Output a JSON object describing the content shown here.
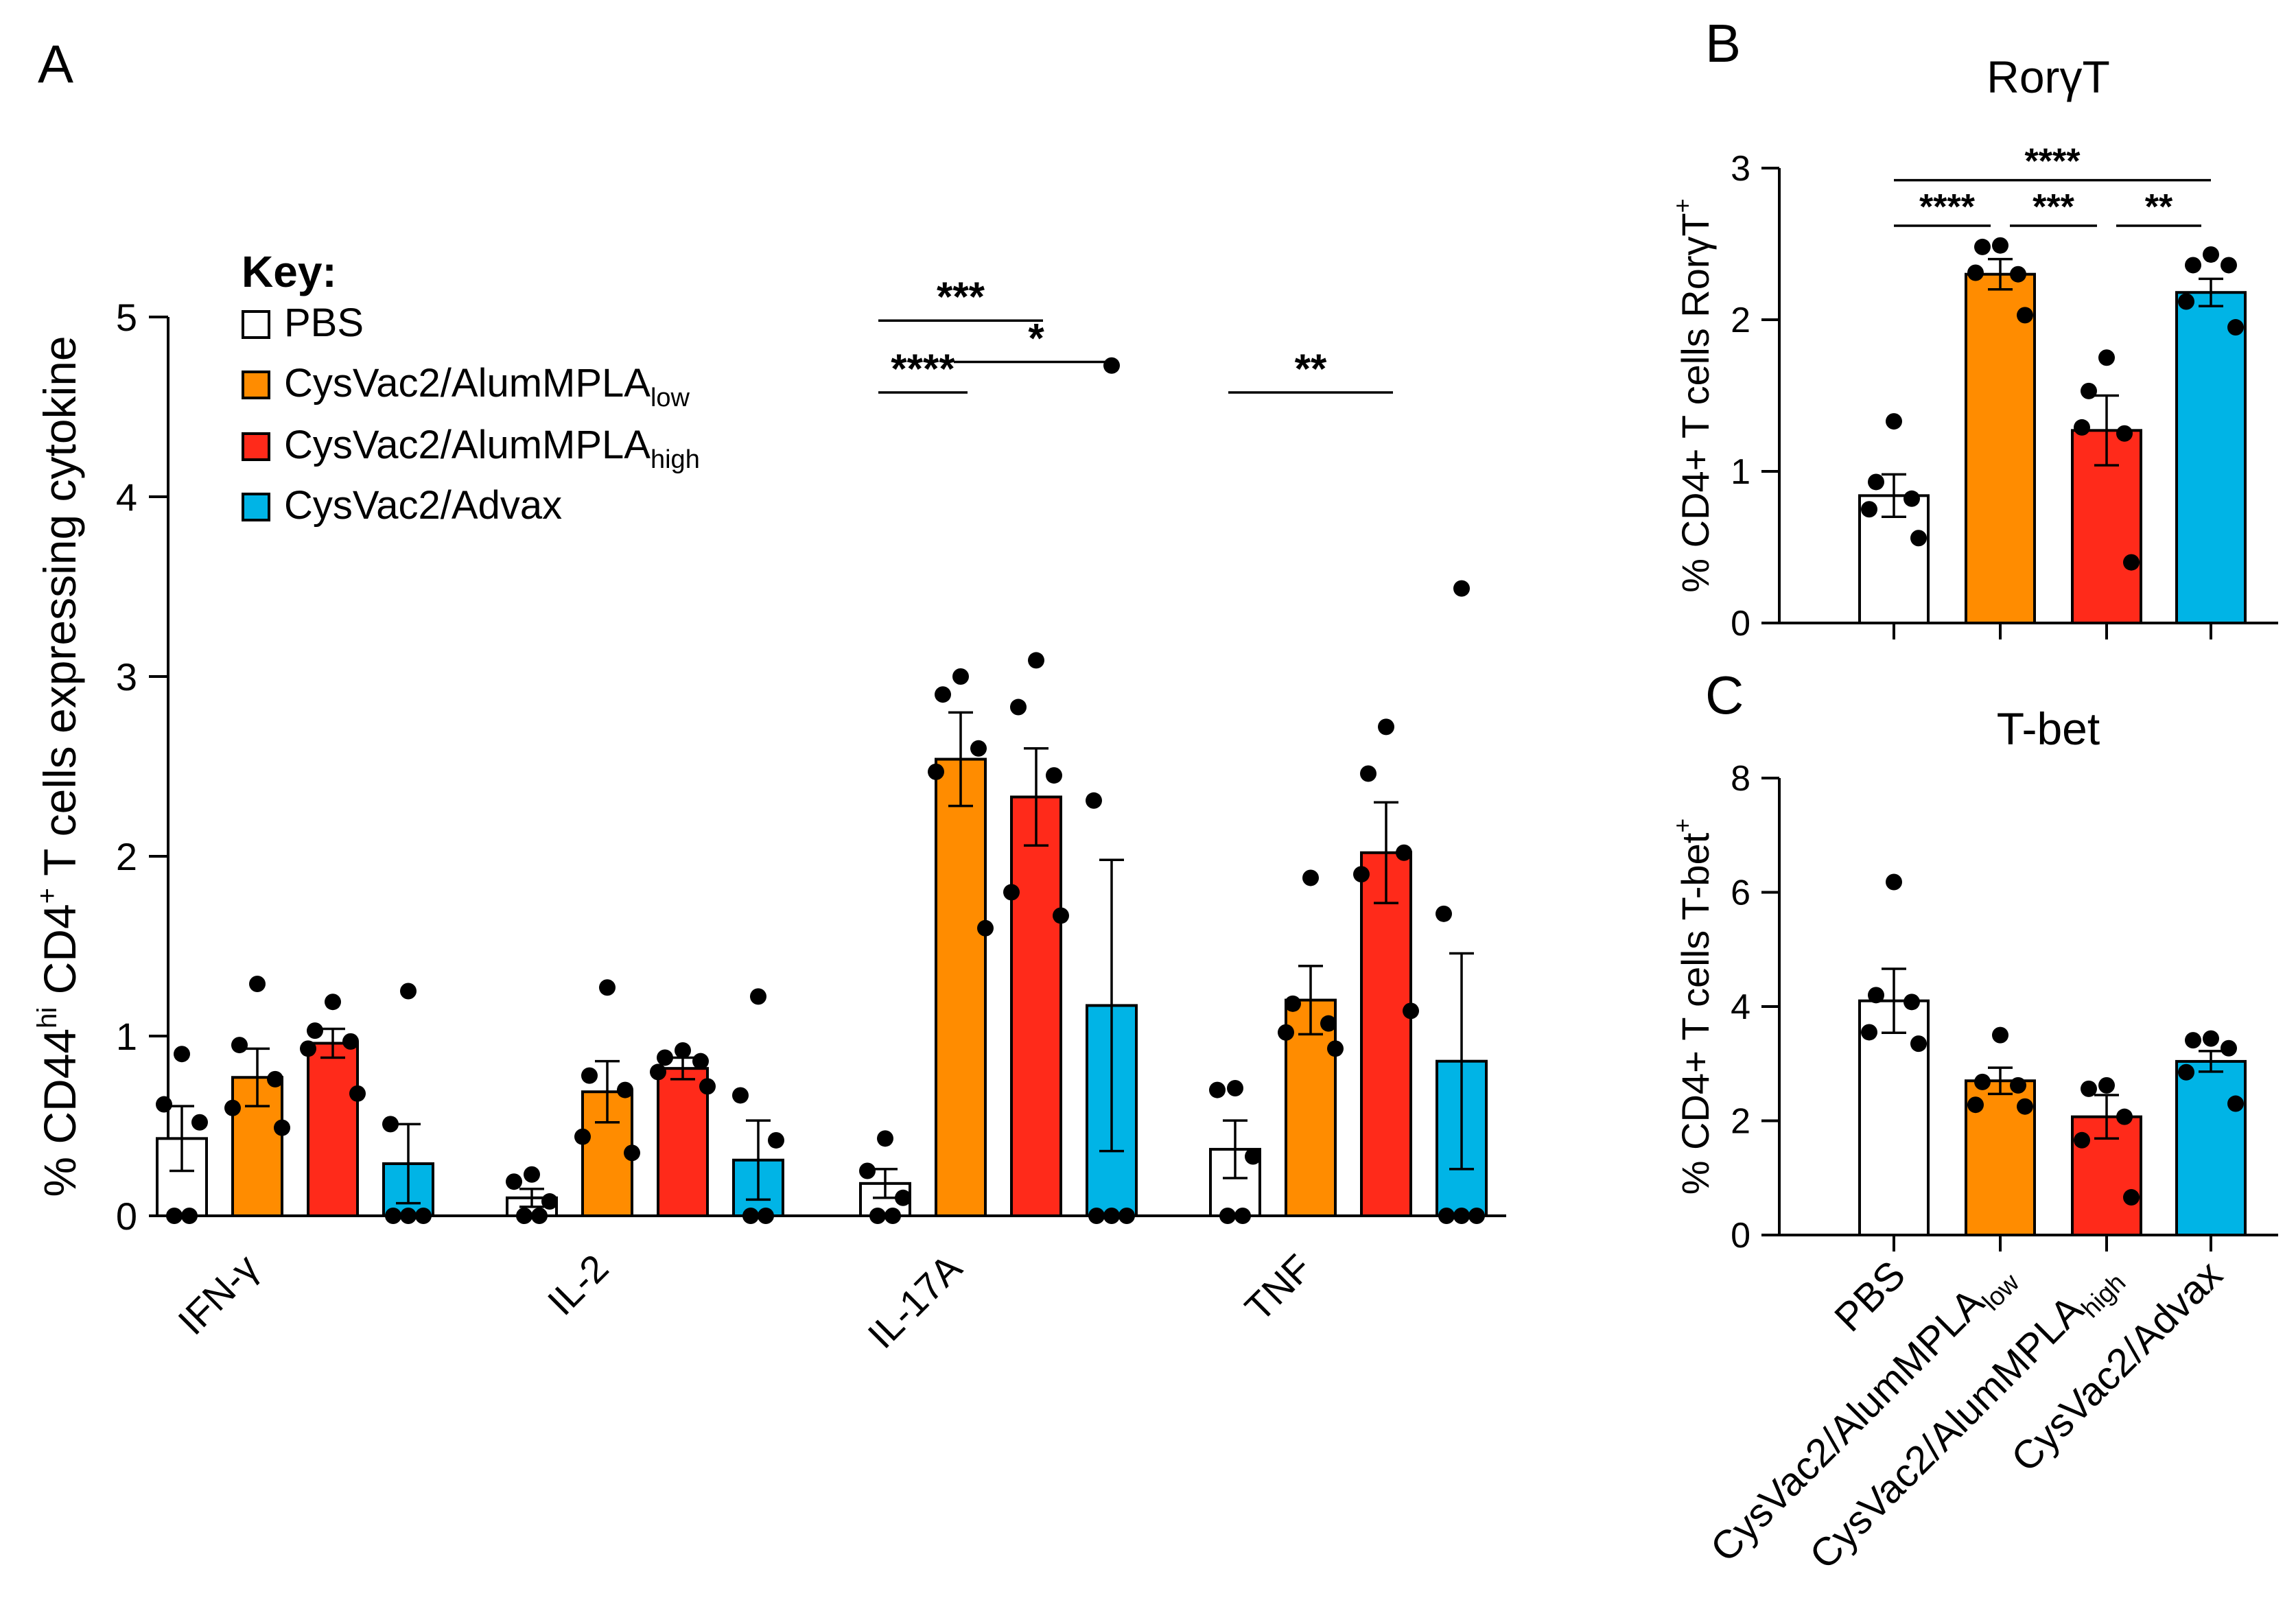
{
  "groups": [
    {
      "name": "PBS",
      "sub": "",
      "color": "#ffffff"
    },
    {
      "name": "CysVac2/AlumMPLA",
      "sub": "low",
      "color": "#ff8c00"
    },
    {
      "name": "CysVac2/AlumMPLA",
      "sub": "high",
      "color": "#ff2a1a"
    },
    {
      "name": "CysVac2/Advax",
      "sub": "",
      "color": "#00b4e6"
    }
  ],
  "key_title": "Key:",
  "chart_data": [
    {
      "panel": "A",
      "type": "bar",
      "title": "",
      "ylabel_parts": [
        "% CD44",
        "hi",
        " CD4",
        "+",
        " T cells expressing cytokine"
      ],
      "ylim": [
        0,
        5
      ],
      "yticks": [
        0,
        1,
        2,
        3,
        4,
        5
      ],
      "categories": [
        "IFN-γ",
        "IL-2",
        "IL-17A",
        "TNF"
      ],
      "series": [
        {
          "name": "PBS",
          "values": [
            0.43,
            0.1,
            0.18,
            0.37
          ],
          "sem": [
            0.18,
            0.05,
            0.08,
            0.16
          ],
          "points": [
            [
              0.9,
              0.62,
              0.52,
              0,
              0
            ],
            [
              0.23,
              0.19,
              0.08,
              0,
              0
            ],
            [
              0.43,
              0.25,
              0.1,
              0,
              0
            ],
            [
              0.71,
              0.7,
              0.33,
              0,
              0
            ]
          ]
        },
        {
          "name": "CysVac2/AlumMPLA low",
          "values": [
            0.77,
            0.69,
            2.54,
            1.2
          ],
          "sem": [
            0.16,
            0.17,
            0.26,
            0.19
          ],
          "points": [
            [
              1.29,
              0.95,
              0.76,
              0.6,
              0.49
            ],
            [
              1.27,
              0.78,
              0.7,
              0.44,
              0.35
            ],
            [
              3.0,
              2.9,
              2.6,
              2.47,
              1.6
            ],
            [
              1.88,
              1.18,
              1.07,
              1.02,
              0.93
            ]
          ]
        },
        {
          "name": "CysVac2/AlumMPLA high",
          "values": [
            0.96,
            0.82,
            2.33,
            2.02
          ],
          "sem": [
            0.08,
            0.06,
            0.27,
            0.28
          ],
          "points": [
            [
              1.19,
              1.03,
              0.97,
              0.93,
              0.68
            ],
            [
              0.92,
              0.88,
              0.86,
              0.8,
              0.72
            ],
            [
              3.09,
              2.83,
              2.45,
              1.8,
              1.67
            ],
            [
              2.72,
              2.46,
              2.02,
              1.9,
              1.14
            ]
          ]
        },
        {
          "name": "CysVac2/Advax",
          "values": [
            0.29,
            0.31,
            1.17,
            0.86
          ],
          "sem": [
            0.22,
            0.22,
            0.81,
            0.6
          ],
          "points": [
            [
              1.25,
              0.51,
              0,
              0,
              0
            ],
            [
              1.22,
              0.67,
              0.42,
              0,
              0
            ],
            [
              4.73,
              2.31,
              0,
              0,
              0
            ],
            [
              3.49,
              1.68,
              0,
              0,
              0
            ]
          ]
        }
      ],
      "significance": [
        {
          "label": "***",
          "category": 2,
          "from": 0,
          "to": 2,
          "y": 4.98
        },
        {
          "label": "*",
          "category": 2,
          "from": 1,
          "to": 3,
          "y": 4.75
        },
        {
          "label": "****",
          "category": 2,
          "from": 0,
          "to": 1,
          "y": 4.58
        },
        {
          "label": "**",
          "category": 3,
          "from": 0,
          "to": 2,
          "y": 4.58
        }
      ]
    },
    {
      "panel": "B",
      "type": "bar",
      "title": "RorγT",
      "ylabel_parts": [
        "% CD4+ T cells RorγT",
        "+"
      ],
      "ylim": [
        0,
        3
      ],
      "yticks": [
        0,
        1,
        2,
        3
      ],
      "values": [
        0.84,
        2.3,
        1.27,
        2.18
      ],
      "sem": [
        0.14,
        0.1,
        0.23,
        0.09
      ],
      "points": [
        [
          1.33,
          0.93,
          0.82,
          0.75,
          0.56
        ],
        [
          2.49,
          2.48,
          2.3,
          2.31,
          2.03
        ],
        [
          1.75,
          1.53,
          1.25,
          1.29,
          0.4
        ],
        [
          2.43,
          2.36,
          2.36,
          2.12,
          1.95
        ]
      ],
      "significance": [
        {
          "label": "****",
          "from": 0,
          "to": 3,
          "y": 2.92
        },
        {
          "label": "****",
          "from": 0,
          "to": 1,
          "y": 2.62
        },
        {
          "label": "***",
          "from": 1,
          "to": 2,
          "y": 2.62
        },
        {
          "label": "**",
          "from": 2,
          "to": 3,
          "y": 2.62
        }
      ]
    },
    {
      "panel": "C",
      "type": "bar",
      "title": "T-bet",
      "ylabel_parts": [
        "% CD4+ T cells T-bet",
        "+"
      ],
      "ylim": [
        0,
        8
      ],
      "yticks": [
        0,
        2,
        4,
        6,
        8
      ],
      "values": [
        4.1,
        2.7,
        2.07,
        3.04
      ],
      "sem": [
        0.56,
        0.23,
        0.38,
        0.18
      ],
      "points": [
        [
          6.18,
          4.2,
          4.08,
          3.55,
          3.35
        ],
        [
          3.5,
          2.68,
          2.62,
          2.28,
          2.25
        ],
        [
          2.62,
          2.56,
          2.07,
          1.66,
          0.66
        ],
        [
          3.44,
          3.41,
          3.27,
          2.85,
          2.3
        ]
      ]
    }
  ],
  "xlabels_bc": [
    {
      "main": "PBS",
      "sub": ""
    },
    {
      "main": "CysVac2/AlumMPLA",
      "sub": "low"
    },
    {
      "main": "CysVac2/AlumMPLA",
      "sub": "high"
    },
    {
      "main": "CysVac2/Advax",
      "sub": ""
    }
  ],
  "panel_letters": [
    "A",
    "B",
    "C"
  ]
}
